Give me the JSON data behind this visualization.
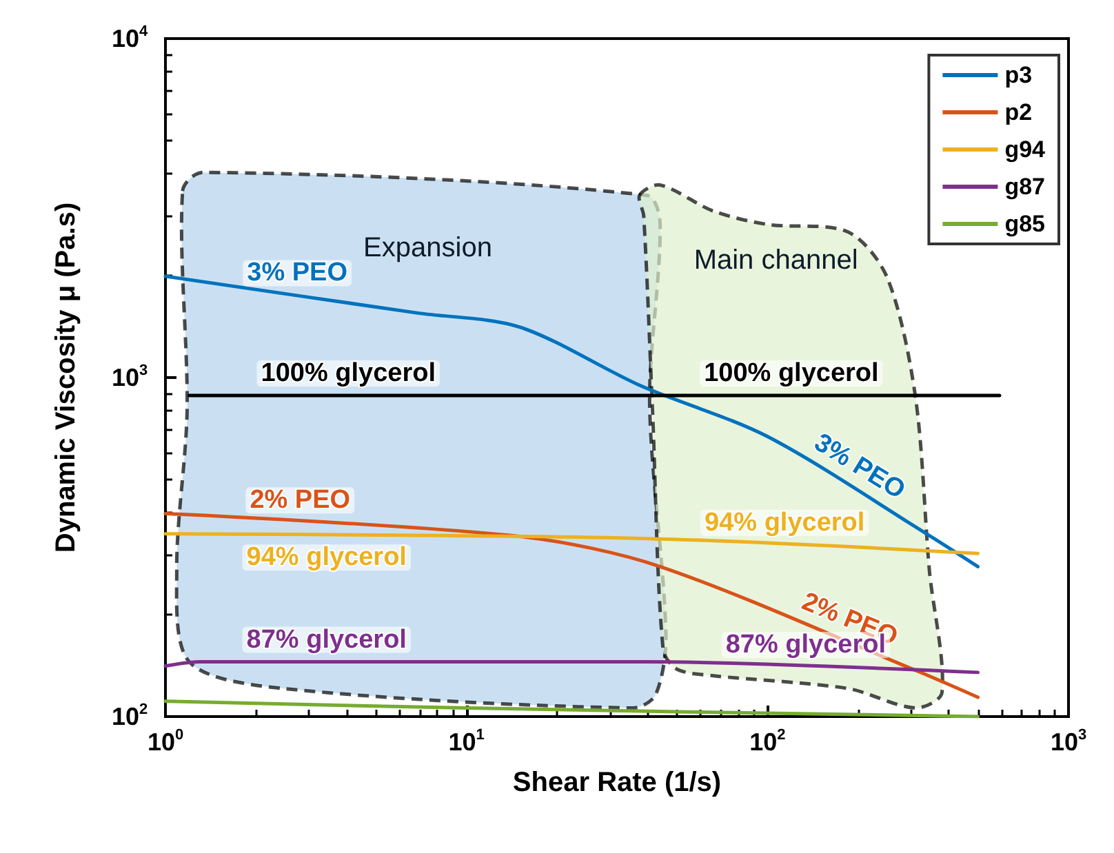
{
  "chart_data": {
    "type": "line",
    "xlabel": "Shear Rate (1/s)",
    "ylabel": "Dynamic Viscosity μ (Pa.s)",
    "log": "xy",
    "xlim": [
      1,
      1000
    ],
    "ylim": [
      100,
      10000
    ],
    "xticks": [
      {
        "value": 1,
        "label": "10$^{0}$"
      },
      {
        "value": 10,
        "label": "10$^{1}$"
      },
      {
        "value": 100,
        "label": "10$^{2}$"
      },
      {
        "value": 1000,
        "label": "10$^{3}$"
      }
    ],
    "yticks": [
      {
        "value": 100,
        "label": "10$^{2}$"
      },
      {
        "value": 1000,
        "label": "10$^{3}$"
      },
      {
        "value": 10000,
        "label": "10$^{4}$"
      }
    ],
    "grid": false,
    "legend": "top right",
    "marker": "none",
    "line_style": "solid",
    "series": [
      {
        "type": "area",
        "name": "Expansion",
        "color": "#b4d3ec",
        "x": [
          1.14,
          1.33,
          39.7,
          44,
          40.6,
          46,
          42.5,
          35.7,
          2.47,
          1.2,
          1.09,
          1.18
        ],
        "values": [
          3550,
          4030,
          3450,
          2830,
          840,
          173,
          116,
          106,
          121,
          145,
          272,
          800
        ]
      },
      {
        "type": "area",
        "name": "Main channel",
        "color": "#dfefcf",
        "x": [
          37.6,
          44,
          66,
          100,
          185,
          250,
          310,
          345,
          380,
          310,
          185,
          66,
          50,
          45,
          41.5,
          38.8
        ],
        "values": [
          3450,
          3700,
          3100,
          2830,
          2690,
          1970,
          880,
          270,
          118,
          106,
          121,
          132,
          138,
          158,
          800,
          3000
        ]
      },
      {
        "name": "p3",
        "color": "#0072bd",
        "x": [
          1,
          6.9,
          15,
          38,
          100,
          345,
          500
        ],
        "values": [
          1990,
          1550,
          1410,
          945,
          670,
          342,
          277
        ]
      },
      {
        "name": "p2",
        "color": "#d95319",
        "x": [
          1,
          15,
          44,
          316,
          500
        ],
        "values": [
          397,
          340,
          277,
          136,
          114
        ]
      },
      {
        "name": "g94",
        "color": "#edb120",
        "x": [
          1,
          40,
          500
        ],
        "values": [
          346,
          335,
          303
        ]
      },
      {
        "name": "g87",
        "color": "#7e2f8e",
        "x": [
          1,
          1.3,
          40,
          500
        ],
        "values": [
          141,
          145,
          145,
          135
        ]
      },
      {
        "name": "g85",
        "color": "#77ac30",
        "x": [
          1,
          10,
          500
        ],
        "values": [
          111,
          106,
          100
        ]
      },
      {
        "color": "#000000",
        "x": [
          1.2,
          590
        ],
        "values": [
          885,
          885
        ]
      }
    ],
    "annotations": [
      {
        "text": "3% PEO",
        "x": 2.74,
        "y": 1750
      },
      {
        "text": "100% glycerol",
        "x": 4.05,
        "y": 885
      },
      {
        "text": "100% glycerol",
        "x": 120,
        "y": 885
      },
      {
        "text": "3% PEO",
        "x": 185,
        "y": 480
      },
      {
        "text": "2% PEO",
        "x": 2.8,
        "y": 374
      },
      {
        "text": "94% glycerol",
        "x": 3.43,
        "y": 342
      },
      {
        "text": "94% glycerol",
        "x": 114,
        "y": 321
      },
      {
        "text": "2% PEO",
        "x": 176,
        "y": 168
      },
      {
        "text": "87% glycerol",
        "x": 3.43,
        "y": 145
      },
      {
        "text": "87% glycerol",
        "x": 134,
        "y": 140
      }
    ]
  }
}
